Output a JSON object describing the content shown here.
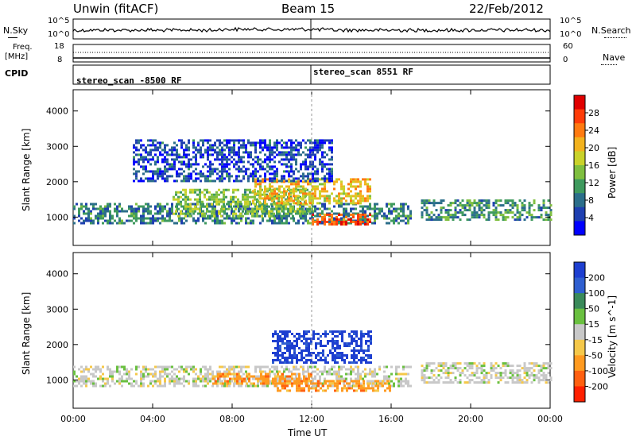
{
  "header": {
    "left": "Unwin (fitACF)",
    "center": "Beam 15",
    "right": "22/Feb/2012"
  },
  "strip": {
    "nsky_label": "N.Sky",
    "nsky_ticks": [
      "10^5",
      "10^0"
    ],
    "nsearch_label": "N.Search",
    "nsearch_ticks": [
      "10^5",
      "10^0"
    ],
    "freq_label_1": "Freq.",
    "freq_label_2": "[MHz]",
    "freq_ticks": [
      "18",
      "8"
    ],
    "nave_label": "Nave",
    "nave_ticks": [
      "60",
      "0"
    ],
    "cpid_label": "CPID",
    "cpid_1": "stereo_scan -8500 RF",
    "cpid_2": "stereo_scan 8551 RF"
  },
  "icons": {
    "nsky_underline": "solid-line-icon",
    "nsearch_underline": "dotted-line-icon",
    "nave_underline": "dotted-line-icon"
  },
  "chart_data": [
    {
      "type": "heatmap",
      "ylabel": "Slant Range [km]",
      "yticks": [
        1000,
        2000,
        3000,
        4000
      ],
      "ylim": [
        200,
        4600
      ],
      "xlim": [
        0,
        24
      ],
      "colorbar": {
        "label": "Power [dB]",
        "ticks": [
          4,
          8,
          12,
          16,
          20,
          24,
          28
        ],
        "range": [
          0,
          32
        ],
        "colors": [
          "#0000ff",
          "#1e3fb0",
          "#2b6e8a",
          "#3f9a5e",
          "#7fbf3f",
          "#c9d22a",
          "#f2b21e",
          "#ff7a10",
          "#ff3c08",
          "#e00000"
        ]
      },
      "regions": [
        {
          "x": [
            0,
            17
          ],
          "y": [
            800,
            1400
          ],
          "value": 8
        },
        {
          "x": [
            5,
            12
          ],
          "y": [
            1000,
            1800
          ],
          "value": 14
        },
        {
          "x": [
            9,
            15
          ],
          "y": [
            1400,
            2100
          ],
          "value": 20
        },
        {
          "x": [
            12,
            15
          ],
          "y": [
            800,
            1100
          ],
          "value": 28
        },
        {
          "x": [
            3,
            13
          ],
          "y": [
            2000,
            3200
          ],
          "value": 4
        },
        {
          "x": [
            17.5,
            24
          ],
          "y": [
            900,
            1500
          ],
          "value": 10
        }
      ]
    },
    {
      "type": "heatmap",
      "ylabel": "Slant Range [km]",
      "xlabel": "Time UT",
      "yticks": [
        1000,
        2000,
        3000,
        4000
      ],
      "ylim": [
        200,
        4600
      ],
      "xlim": [
        0,
        24
      ],
      "xticks": [
        "00:00",
        "04:00",
        "08:00",
        "12:00",
        "16:00",
        "20:00",
        "00:00"
      ],
      "colorbar": {
        "label": "Velocity [m s^-1]",
        "ticks": [
          "200",
          "100",
          "50",
          "15",
          "-15",
          "-50",
          "-100",
          "-200"
        ],
        "colors": [
          "#1e3fd0",
          "#2f5fd0",
          "#3a8a5a",
          "#6ac040",
          "#c8c8c8",
          "#f5c84a",
          "#ff9a20",
          "#ff6010",
          "#ff2000"
        ]
      },
      "regions": [
        {
          "x": [
            0,
            17
          ],
          "y": [
            800,
            1400
          ],
          "value": 0
        },
        {
          "x": [
            7,
            12
          ],
          "y": [
            900,
            1200
          ],
          "value": -60
        },
        {
          "x": [
            10,
            15
          ],
          "y": [
            1500,
            2400
          ],
          "value": 120
        },
        {
          "x": [
            10,
            16
          ],
          "y": [
            700,
            1000
          ],
          "value": -80
        },
        {
          "x": [
            17.5,
            24
          ],
          "y": [
            900,
            1500
          ],
          "value": 0
        }
      ]
    }
  ]
}
